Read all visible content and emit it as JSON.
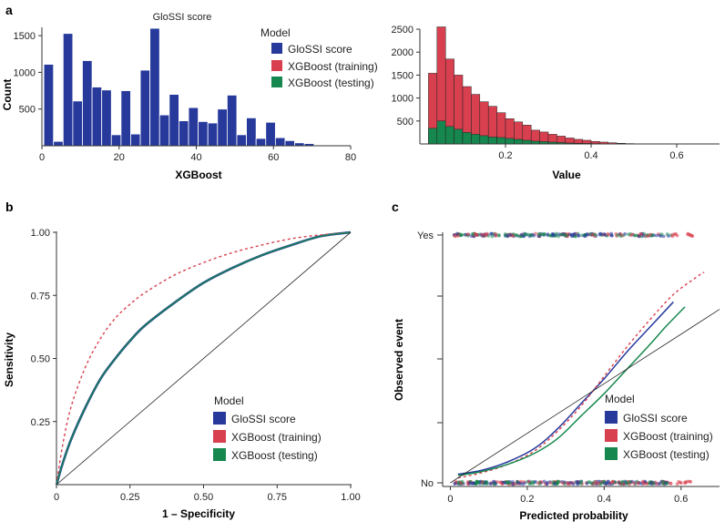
{
  "colors": {
    "gloss": "#273a9c",
    "train": "#d8404f",
    "test": "#16884f",
    "axis": "#333333",
    "diagonal": "#222222"
  },
  "legend": {
    "title": "Model",
    "items": [
      "GloSSI score",
      "XGBoost (training)",
      "XGBoost (testing)"
    ]
  },
  "chart_data": [
    {
      "panel": "a",
      "type": "bar",
      "title": "GloSSI score",
      "xlabel": "XGBoost",
      "ylabel": "Count",
      "xlim": [
        0,
        80
      ],
      "ylim": [
        0,
        1700
      ],
      "xticks": [
        0,
        20,
        40,
        60,
        80
      ],
      "yticks": [
        500,
        1000,
        1500
      ],
      "bin_width": 2.5,
      "bin_start": 0.5,
      "series": [
        {
          "name": "GloSSI score",
          "values": [
            1110,
            60,
            1530,
            610,
            1160,
            800,
            760,
            150,
            750,
            160,
            1030,
            1600,
            420,
            700,
            340,
            520,
            330,
            310,
            500,
            690,
            150,
            380,
            100,
            320,
            110,
            70,
            40,
            30,
            10,
            5,
            3
          ]
        }
      ]
    },
    {
      "panel": "a2",
      "type": "bar",
      "title": "",
      "xlabel": "Value",
      "ylabel": "",
      "xlim": [
        0,
        0.7
      ],
      "ylim": [
        0,
        2600
      ],
      "xticks": [
        0.2,
        0.4,
        0.6
      ],
      "yticks": [
        500,
        1000,
        1500,
        2000,
        2500
      ],
      "bin_width": 0.02,
      "bin_start": 0.02,
      "series": [
        {
          "name": "XGBoost (training)",
          "values": [
            1540,
            2550,
            1850,
            1500,
            1250,
            1080,
            920,
            820,
            680,
            550,
            480,
            410,
            300,
            260,
            210,
            170,
            130,
            100,
            80,
            55,
            40,
            25,
            15,
            8,
            4,
            2,
            1,
            1
          ]
        },
        {
          "name": "XGBoost (testing)",
          "values": [
            340,
            500,
            380,
            320,
            250,
            210,
            180,
            150,
            140,
            120,
            100,
            80,
            60,
            50,
            40,
            30,
            20,
            15,
            12,
            8,
            5,
            3,
            2,
            1,
            1,
            0,
            0,
            0
          ]
        }
      ]
    },
    {
      "panel": "b",
      "type": "line",
      "xlabel": "1 – Specificity",
      "ylabel": "Sensitivity",
      "xlim": [
        0,
        1
      ],
      "ylim": [
        0,
        1
      ],
      "xticks": [
        "0",
        "0.25",
        "0.50",
        "0.75",
        "1.00"
      ],
      "yticks": [
        "0.25",
        "0.50",
        "0.75",
        "1.00"
      ],
      "series": [
        {
          "name": "GloSSI score",
          "style": "solid",
          "x": [
            0,
            0.02,
            0.05,
            0.1,
            0.15,
            0.2,
            0.25,
            0.3,
            0.4,
            0.5,
            0.6,
            0.7,
            0.8,
            0.9,
            1.0
          ],
          "y": [
            0,
            0.08,
            0.18,
            0.31,
            0.42,
            0.5,
            0.57,
            0.63,
            0.72,
            0.8,
            0.86,
            0.91,
            0.95,
            0.985,
            1.0
          ]
        },
        {
          "name": "XGBoost (training)",
          "style": "dashed",
          "x": [
            0,
            0.02,
            0.05,
            0.1,
            0.15,
            0.2,
            0.25,
            0.3,
            0.4,
            0.5,
            0.6,
            0.7,
            0.8,
            0.9,
            1.0
          ],
          "y": [
            0,
            0.15,
            0.31,
            0.47,
            0.58,
            0.66,
            0.715,
            0.76,
            0.83,
            0.88,
            0.92,
            0.95,
            0.975,
            0.99,
            1.0
          ]
        },
        {
          "name": "XGBoost (testing)",
          "style": "solid",
          "x": [
            0,
            0.02,
            0.05,
            0.1,
            0.15,
            0.2,
            0.25,
            0.3,
            0.4,
            0.5,
            0.6,
            0.7,
            0.8,
            0.9,
            1.0
          ],
          "y": [
            0,
            0.08,
            0.18,
            0.31,
            0.42,
            0.5,
            0.57,
            0.63,
            0.72,
            0.8,
            0.86,
            0.91,
            0.95,
            0.985,
            1.0
          ]
        },
        {
          "name": "reference",
          "style": "thin",
          "x": [
            0,
            1
          ],
          "y": [
            0,
            1
          ]
        }
      ]
    },
    {
      "panel": "c",
      "type": "line",
      "xlabel": "Predicted probability",
      "ylabel": "Observed event",
      "xlim": [
        -0.02,
        0.7
      ],
      "ylim": [
        0,
        1
      ],
      "xticks": [
        "0",
        "0.2",
        "0.4",
        "0.6"
      ],
      "yticks": [
        "No",
        "Yes"
      ],
      "series": [
        {
          "name": "GloSSI score",
          "style": "solid",
          "x": [
            0.02,
            0.08,
            0.15,
            0.22,
            0.28,
            0.34,
            0.4,
            0.46,
            0.52,
            0.58
          ],
          "y": [
            0.035,
            0.05,
            0.085,
            0.14,
            0.22,
            0.32,
            0.42,
            0.53,
            0.63,
            0.73
          ]
        },
        {
          "name": "XGBoost (training)",
          "style": "dashed",
          "x": [
            0.02,
            0.08,
            0.15,
            0.22,
            0.28,
            0.34,
            0.4,
            0.46,
            0.52,
            0.58,
            0.64,
            0.66
          ],
          "y": [
            0.02,
            0.04,
            0.075,
            0.13,
            0.21,
            0.31,
            0.43,
            0.55,
            0.66,
            0.76,
            0.83,
            0.85
          ]
        },
        {
          "name": "XGBoost (testing)",
          "style": "solid",
          "x": [
            0.02,
            0.08,
            0.15,
            0.22,
            0.28,
            0.34,
            0.4,
            0.46,
            0.52,
            0.56,
            0.61
          ],
          "y": [
            0.03,
            0.045,
            0.075,
            0.12,
            0.18,
            0.27,
            0.36,
            0.46,
            0.56,
            0.63,
            0.71
          ]
        },
        {
          "name": "reference",
          "style": "thin",
          "x": [
            0,
            0.7
          ],
          "y": [
            0,
            0.7
          ]
        }
      ]
    }
  ],
  "panels": {
    "a": "a",
    "b": "b",
    "c": "c"
  }
}
